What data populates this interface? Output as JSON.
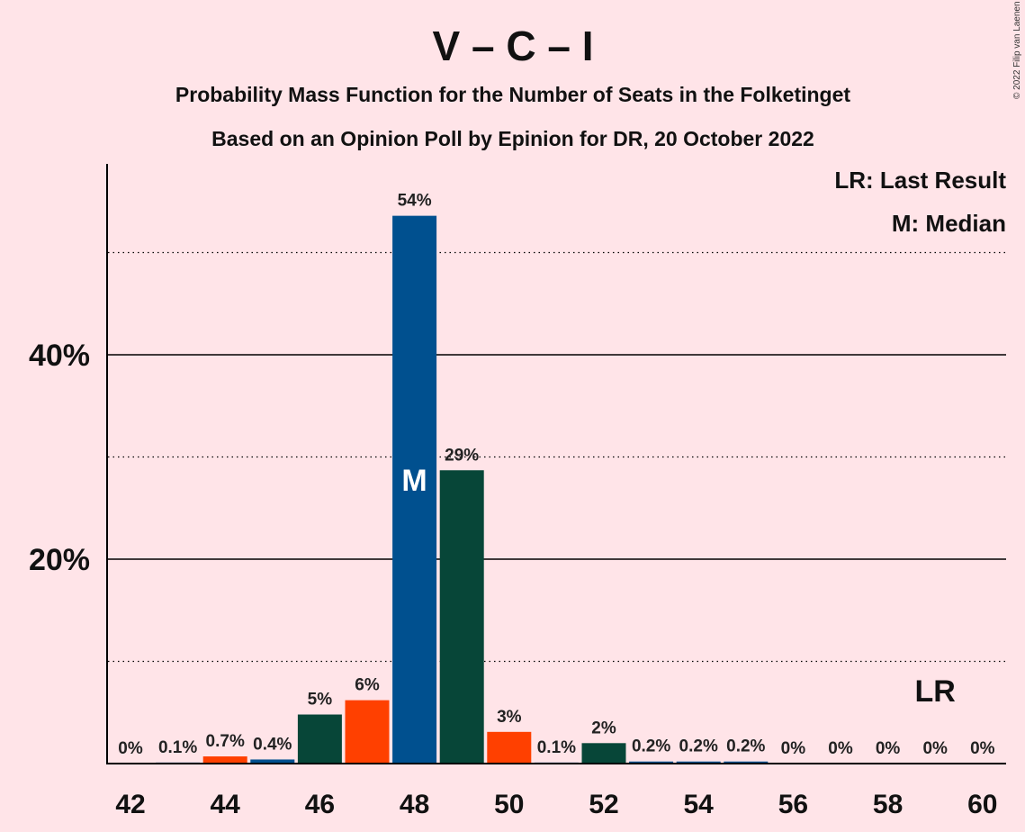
{
  "chart_data": {
    "type": "bar",
    "title": "V – C – I",
    "subtitle": "Probability Mass Function for the Number of Seats in the Folketinget",
    "subtitle2": "Based on an Opinion Poll by Epinion for DR, 20 October 2022",
    "copyright": "© 2022 Filip van Laenen",
    "legend": [
      "LR: Last Result",
      "M: Median"
    ],
    "legend_position": "top-right",
    "x": [
      42,
      43,
      44,
      45,
      46,
      47,
      48,
      49,
      50,
      51,
      52,
      53,
      54,
      55,
      56,
      57,
      58,
      59,
      60
    ],
    "values": [
      0,
      0.1,
      0.7,
      0.4,
      4.8,
      6.2,
      53.6,
      28.7,
      3.1,
      0.1,
      2.0,
      0.2,
      0.2,
      0.2,
      0,
      0,
      0,
      0,
      0
    ],
    "labels": [
      "0%",
      "0.1%",
      "0.7%",
      "0.4%",
      "5%",
      "6%",
      "54%",
      "29%",
      "3%",
      "0.1%",
      "2%",
      "0.2%",
      "0.2%",
      "0.2%",
      "0%",
      "0%",
      "0%",
      "0%",
      "0%"
    ],
    "colors": [
      "#00508F",
      "#00508F",
      "#FF4000",
      "#00508F",
      "#074638",
      "#FF4000",
      "#00508F",
      "#074638",
      "#FF4000",
      "#00508F",
      "#074638",
      "#00508F",
      "#00508F",
      "#00508F",
      "#00508F",
      "#00508F",
      "#00508F",
      "#00508F",
      "#00508F"
    ],
    "xticks": [
      42,
      44,
      46,
      48,
      50,
      52,
      54,
      56,
      58,
      60
    ],
    "yticks": [
      {
        "value": 20,
        "label": "20%"
      },
      {
        "value": 40,
        "label": "40%"
      }
    ],
    "minor_gridlines": [
      10,
      30,
      50
    ],
    "ylim": [
      0,
      58
    ],
    "median": {
      "x": 48,
      "label": "M"
    },
    "last_result": {
      "x": 59,
      "label": "LR"
    }
  }
}
